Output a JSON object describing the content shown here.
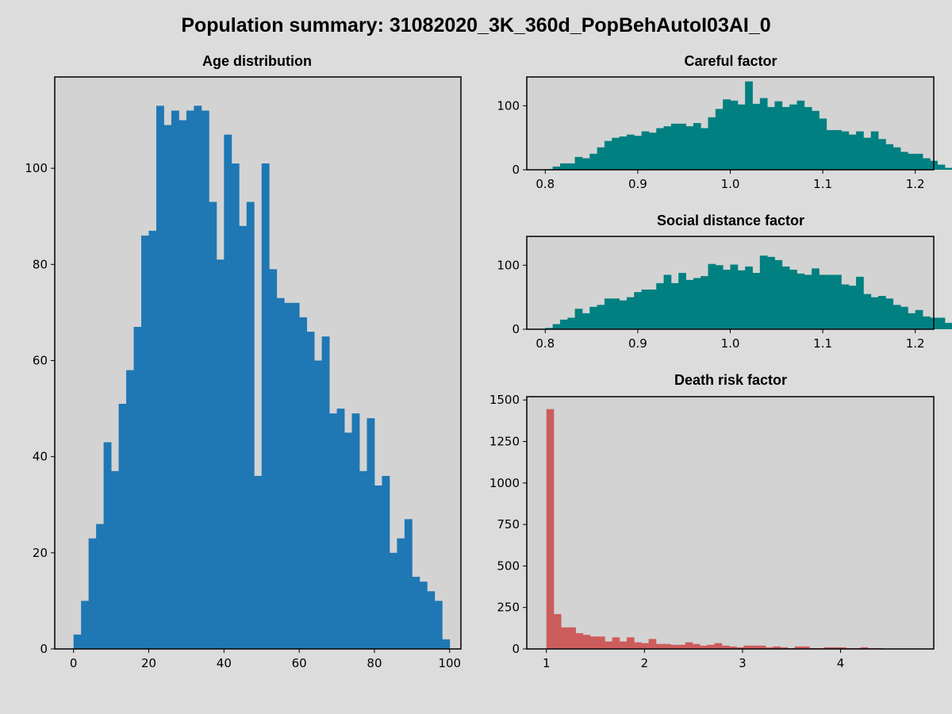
{
  "title": "Population summary: 31082020_3K_360d_PopBehAutoI03AI_0",
  "chart_data": [
    {
      "type": "bar",
      "title": "Age distribution",
      "xlabel": "",
      "ylabel": "",
      "color": "#1f77b4",
      "xlim": [
        -5,
        103
      ],
      "ylim": [
        0,
        119
      ],
      "bin_start": 0,
      "bin_width": 2,
      "values": [
        3,
        10,
        23,
        26,
        43,
        37,
        51,
        58,
        67,
        86,
        87,
        113,
        109,
        112,
        110,
        112,
        113,
        112,
        93,
        81,
        107,
        101,
        88,
        93,
        36,
        101,
        79,
        73,
        72,
        72,
        69,
        66,
        60,
        65,
        49,
        50,
        45,
        49,
        37,
        48,
        34,
        36,
        20,
        23,
        27,
        15,
        14,
        12,
        10,
        2
      ],
      "xticks": [
        0,
        20,
        40,
        60,
        80,
        100
      ],
      "yticks": [
        0,
        20,
        40,
        60,
        80,
        100
      ]
    },
    {
      "type": "bar",
      "title": "Careful factor",
      "xlabel": "",
      "ylabel": "",
      "color": "#008080",
      "xlim": [
        0.78,
        1.22
      ],
      "ylim": [
        0,
        145
      ],
      "bin_start": 0.8,
      "bin_width": 0.008,
      "values": [
        1,
        5,
        10,
        10,
        20,
        18,
        25,
        35,
        45,
        50,
        52,
        55,
        53,
        60,
        58,
        65,
        68,
        72,
        72,
        68,
        73,
        65,
        82,
        95,
        110,
        108,
        102,
        138,
        103,
        112,
        98,
        107,
        98,
        102,
        108,
        98,
        92,
        80,
        62,
        62,
        60,
        55,
        60,
        50,
        60,
        48,
        40,
        35,
        28,
        25,
        25,
        18,
        14,
        8,
        3
      ],
      "xticks": [
        0.8,
        0.9,
        1.0,
        1.1,
        1.2
      ],
      "yticks": [
        0,
        100
      ]
    },
    {
      "type": "bar",
      "title": "Social distance factor",
      "xlabel": "",
      "ylabel": "",
      "color": "#008080",
      "xlim": [
        0.78,
        1.22
      ],
      "ylim": [
        0,
        145
      ],
      "bin_start": 0.8,
      "bin_width": 0.008,
      "values": [
        2,
        8,
        15,
        18,
        32,
        25,
        35,
        38,
        48,
        48,
        45,
        50,
        58,
        62,
        62,
        72,
        85,
        72,
        88,
        77,
        80,
        83,
        102,
        100,
        93,
        101,
        92,
        98,
        88,
        115,
        113,
        108,
        98,
        93,
        87,
        85,
        95,
        85,
        85,
        85,
        70,
        68,
        82,
        55,
        50,
        52,
        48,
        38,
        35,
        25,
        30,
        20,
        18,
        18,
        10
      ],
      "xticks": [
        0.8,
        0.9,
        1.0,
        1.1,
        1.2
      ],
      "yticks": [
        0,
        100
      ]
    },
    {
      "type": "bar",
      "title": "Death risk factor",
      "xlabel": "",
      "ylabel": "",
      "color": "#cd5c5c",
      "xlim": [
        0.8,
        4.95
      ],
      "ylim": [
        0,
        1520
      ],
      "bin_start": 1.0,
      "bin_width": 0.0745,
      "values": [
        1445,
        210,
        130,
        130,
        95,
        85,
        75,
        75,
        45,
        70,
        45,
        70,
        40,
        35,
        60,
        30,
        30,
        25,
        25,
        40,
        30,
        20,
        25,
        35,
        20,
        15,
        10,
        20,
        20,
        20,
        10,
        15,
        10,
        5,
        15,
        15,
        5,
        5,
        10,
        10,
        10,
        5,
        5,
        10,
        5,
        5,
        0,
        0,
        0,
        0,
        0
      ],
      "xticks": [
        1,
        2,
        3,
        4
      ],
      "yticks": [
        0,
        250,
        500,
        750,
        1000,
        1250,
        1500
      ]
    }
  ]
}
